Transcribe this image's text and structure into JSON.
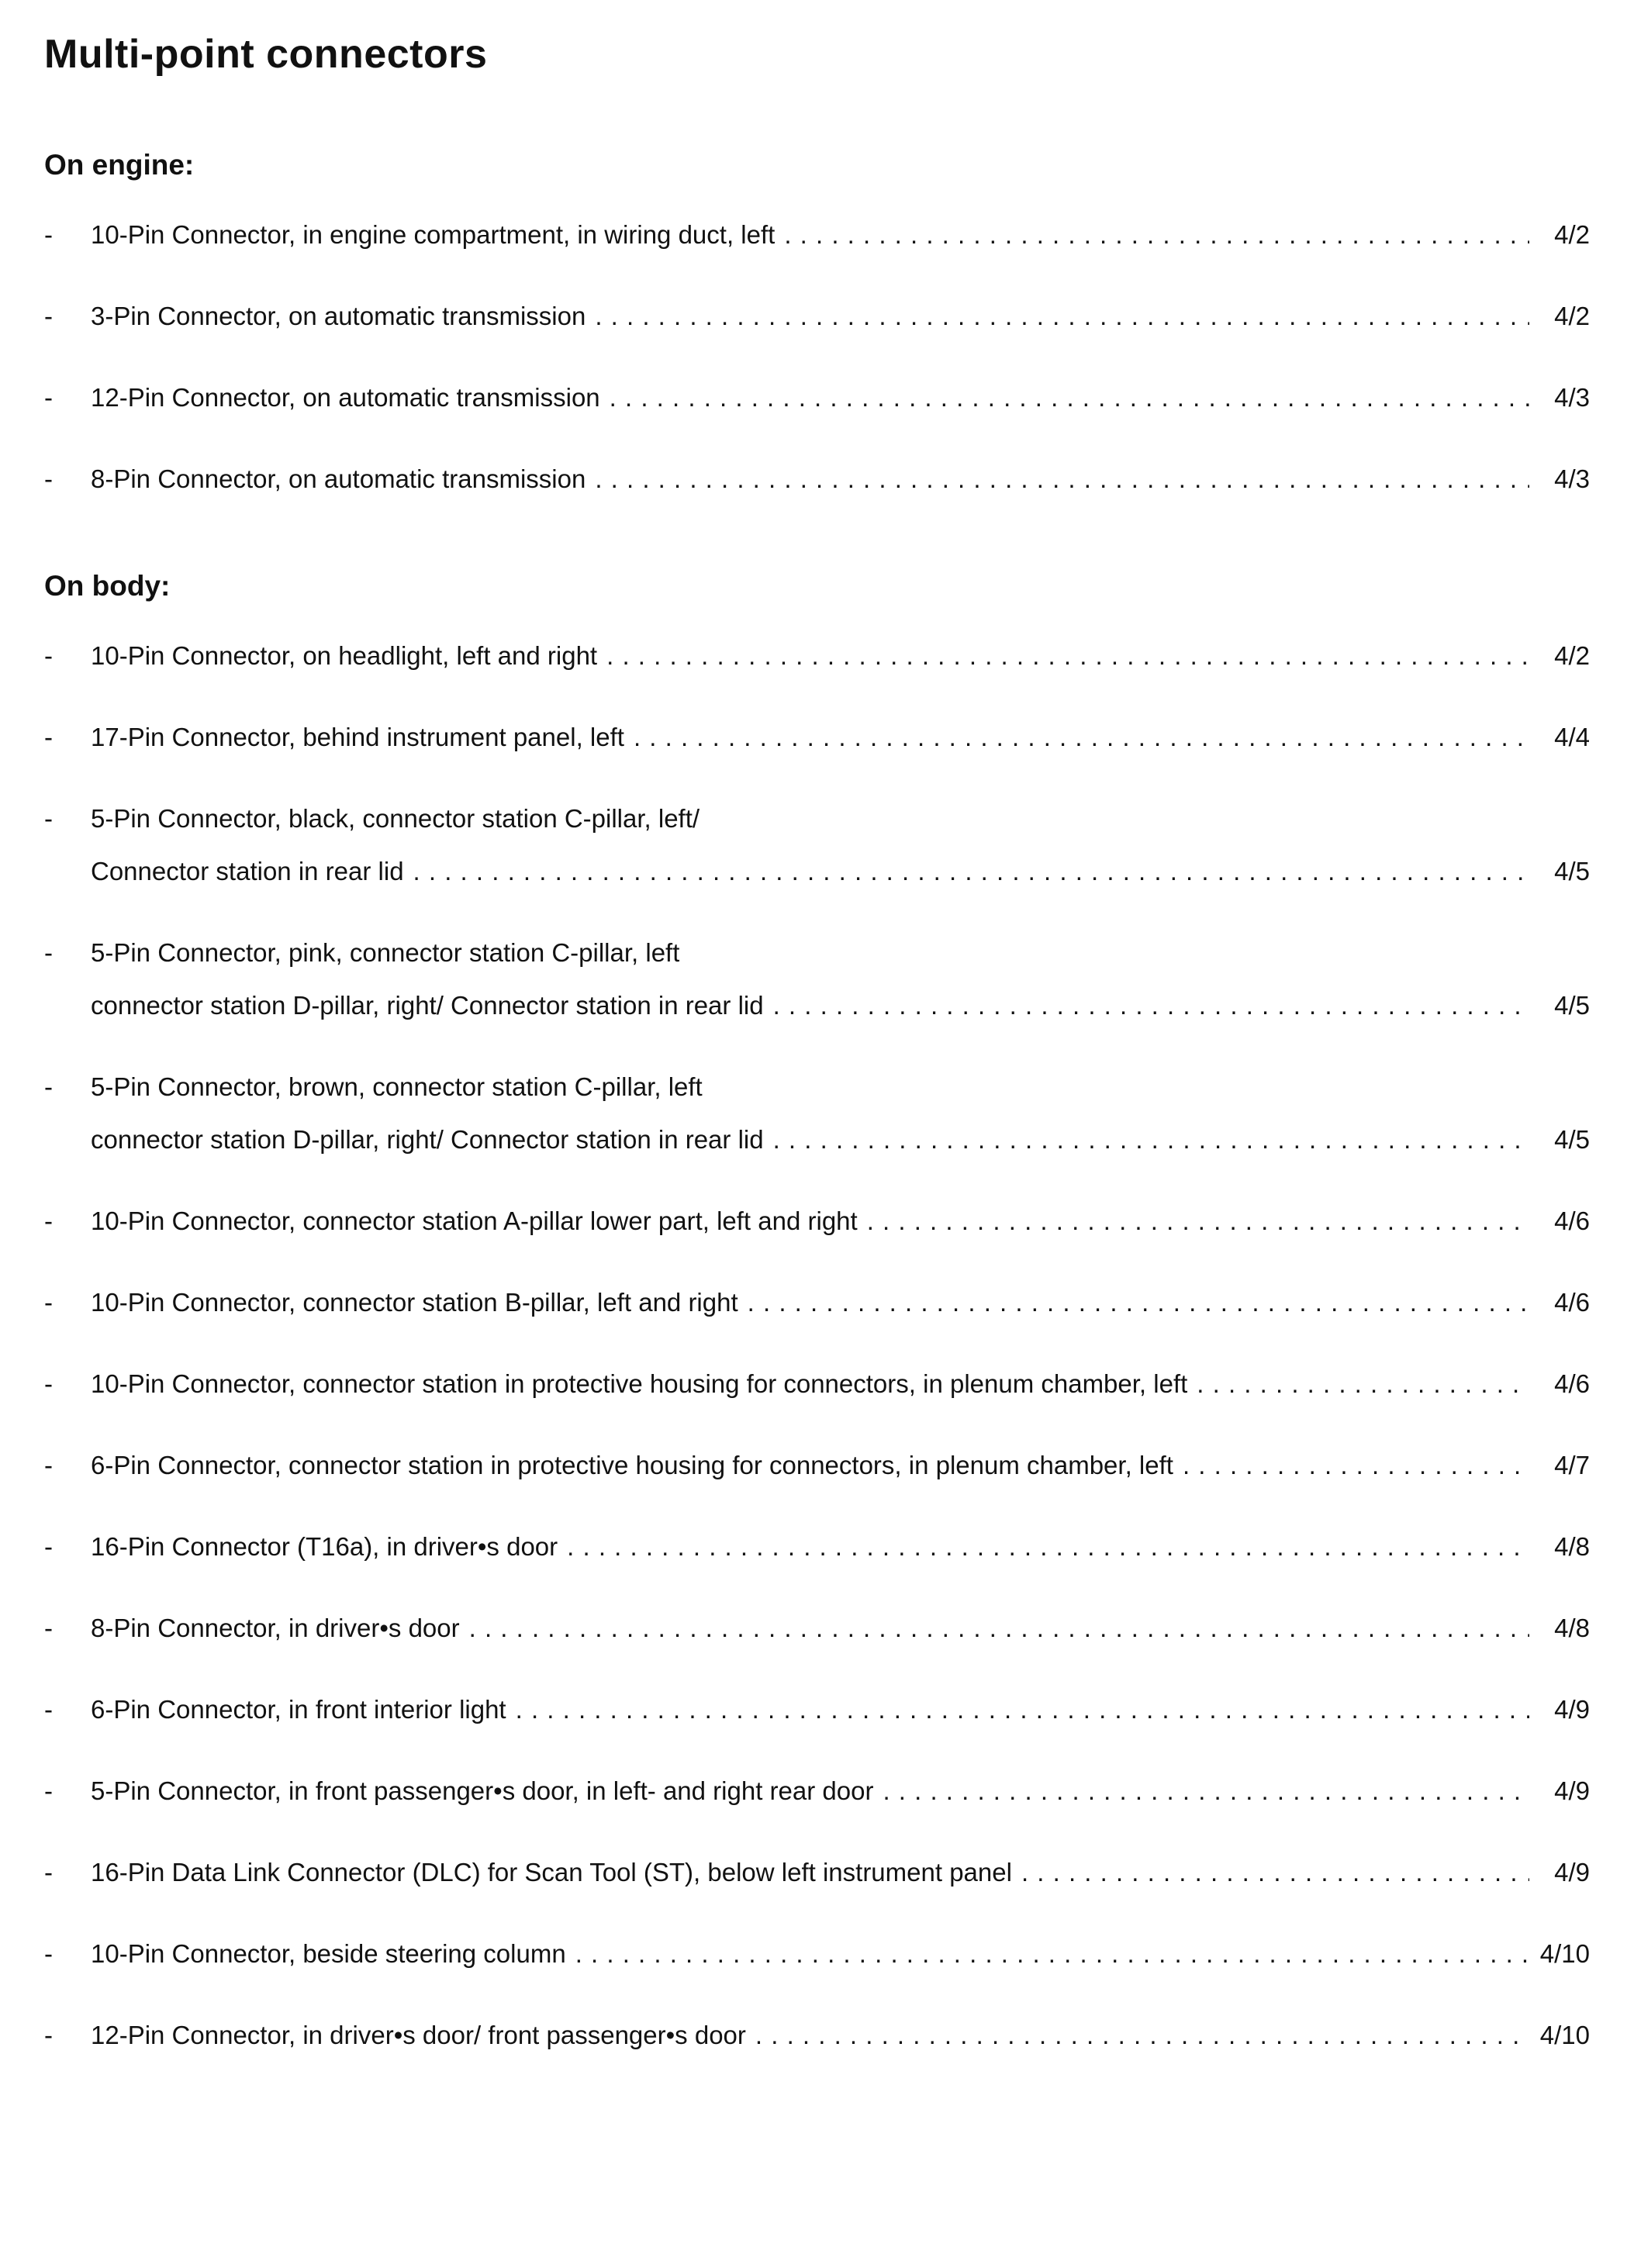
{
  "document": {
    "title": "Multi-point connectors",
    "sections": [
      {
        "heading": "On engine:",
        "entries": [
          {
            "lines": [
              "10-Pin Connector, in engine compartment, in wiring duct, left"
            ],
            "page": "4/2"
          },
          {
            "lines": [
              "3-Pin Connector, on automatic transmission"
            ],
            "page": "4/2"
          },
          {
            "lines": [
              "12-Pin Connector, on automatic transmission"
            ],
            "page": "4/3"
          },
          {
            "lines": [
              "8-Pin Connector, on automatic transmission"
            ],
            "page": "4/3"
          }
        ]
      },
      {
        "heading": "On body:",
        "entries": [
          {
            "lines": [
              "10-Pin Connector, on headlight, left and right"
            ],
            "page": "4/2"
          },
          {
            "lines": [
              "17-Pin Connector, behind instrument panel, left"
            ],
            "page": "4/4"
          },
          {
            "lines": [
              "5-Pin Connector, black, connector station C-pillar, left/",
              "Connector station in rear lid"
            ],
            "page": "4/5"
          },
          {
            "lines": [
              "5-Pin Connector, pink, connector station C-pillar, left",
              "connector station D-pillar, right/ Connector station in rear lid"
            ],
            "page": "4/5"
          },
          {
            "lines": [
              "5-Pin Connector, brown, connector station C-pillar, left",
              "connector station D-pillar, right/ Connector station in rear lid"
            ],
            "page": "4/5"
          },
          {
            "lines": [
              "10-Pin Connector, connector station A-pillar lower part, left and right"
            ],
            "page": "4/6"
          },
          {
            "lines": [
              "10-Pin Connector, connector station B-pillar, left and right"
            ],
            "page": "4/6"
          },
          {
            "lines": [
              "10-Pin Connector, connector station in protective housing for connectors, in plenum chamber, left"
            ],
            "page": "4/6"
          },
          {
            "lines": [
              "6-Pin Connector, connector station in protective housing for connectors, in plenum chamber, left"
            ],
            "page": "4/7"
          },
          {
            "lines": [
              "16-Pin Connector (T16a), in driver•s door"
            ],
            "page": "4/8"
          },
          {
            "lines": [
              "8-Pin Connector, in driver•s door"
            ],
            "page": "4/8"
          },
          {
            "lines": [
              "6-Pin Connector, in front interior light"
            ],
            "page": "4/9"
          },
          {
            "lines": [
              "5-Pin Connector, in front passenger•s door, in left- and right rear door"
            ],
            "page": "4/9"
          },
          {
            "lines": [
              "16-Pin Data Link Connector (DLC) for Scan Tool (ST), below left instrument panel"
            ],
            "page": "4/9"
          },
          {
            "lines": [
              "10-Pin Connector, beside steering column"
            ],
            "page": "4/10"
          },
          {
            "lines": [
              "12-Pin Connector, in driver•s door/ front passenger•s door"
            ],
            "page": "4/10"
          }
        ]
      }
    ]
  }
}
